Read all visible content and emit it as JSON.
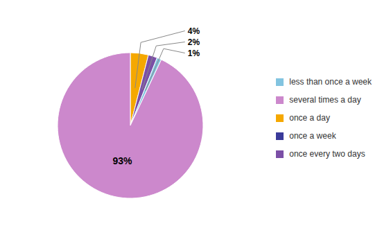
{
  "chart_data": {
    "type": "pie",
    "values": [
      4,
      2,
      1,
      93
    ],
    "value_labels": [
      "4%",
      "2%",
      "1%",
      "93%"
    ],
    "colors": [
      "#F5A800",
      "#7B4FA6",
      "#82C4E0",
      "#CC88CC"
    ],
    "data_labels": true,
    "legend": "right",
    "legend_labels": [
      "less than once a week",
      "several times a day",
      "once a day",
      "once a week",
      "once every two days"
    ],
    "legend_colors": [
      "#82C4E0",
      "#CC88CC",
      "#F5A800",
      "#3A3A9A",
      "#7B4FA6"
    ]
  }
}
